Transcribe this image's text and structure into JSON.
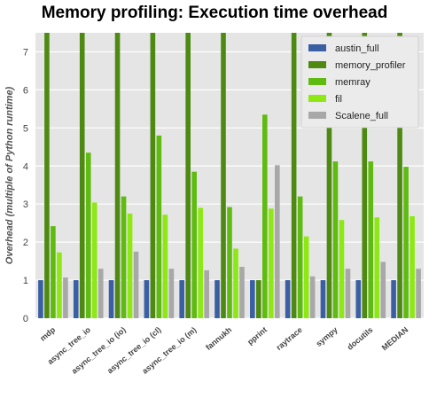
{
  "chart_data": {
    "type": "bar",
    "title": "Memory profiling: Execution time overhead",
    "xlabel": "",
    "ylabel": "Overhead (multiple of Python runtime)",
    "ylim": [
      0,
      7.5
    ],
    "yticks": [
      0,
      1,
      2,
      3,
      4,
      5,
      6,
      7
    ],
    "grid": true,
    "legend_position": "top-right",
    "categories": [
      "mdp",
      "async_tree_io",
      "async_tree_io (io)",
      "async_tree_io (cl)",
      "async_tree_io (m)",
      "fannukh",
      "pprint",
      "raytrace",
      "sympy",
      "docutils",
      "MEDIAN"
    ],
    "series": [
      {
        "name": "austin_full",
        "color": "#3b5fa3",
        "values": [
          1.0,
          1.0,
          1.0,
          1.0,
          1.0,
          1.0,
          1.0,
          1.0,
          1.0,
          1.0,
          1.0
        ]
      },
      {
        "name": "memory_profiler",
        "color": "#4e8a12",
        "values": [
          7.5,
          7.5,
          7.5,
          7.5,
          7.5,
          7.5,
          1.0,
          7.5,
          7.5,
          7.5,
          7.5
        ]
      },
      {
        "name": "memray",
        "color": "#5fbb10",
        "values": [
          2.42,
          4.35,
          3.2,
          4.8,
          3.85,
          2.92,
          5.35,
          3.2,
          4.12,
          4.12,
          3.98
        ]
      },
      {
        "name": "fil",
        "color": "#8ee814",
        "values": [
          1.73,
          3.04,
          2.75,
          2.72,
          2.9,
          1.83,
          2.88,
          2.15,
          2.58,
          2.65,
          2.68
        ]
      },
      {
        "name": "Scalene_full",
        "color": "#a8a8a8",
        "values": [
          1.07,
          1.3,
          1.75,
          1.3,
          1.26,
          1.35,
          4.02,
          1.1,
          1.3,
          1.48,
          1.3
        ]
      }
    ]
  }
}
